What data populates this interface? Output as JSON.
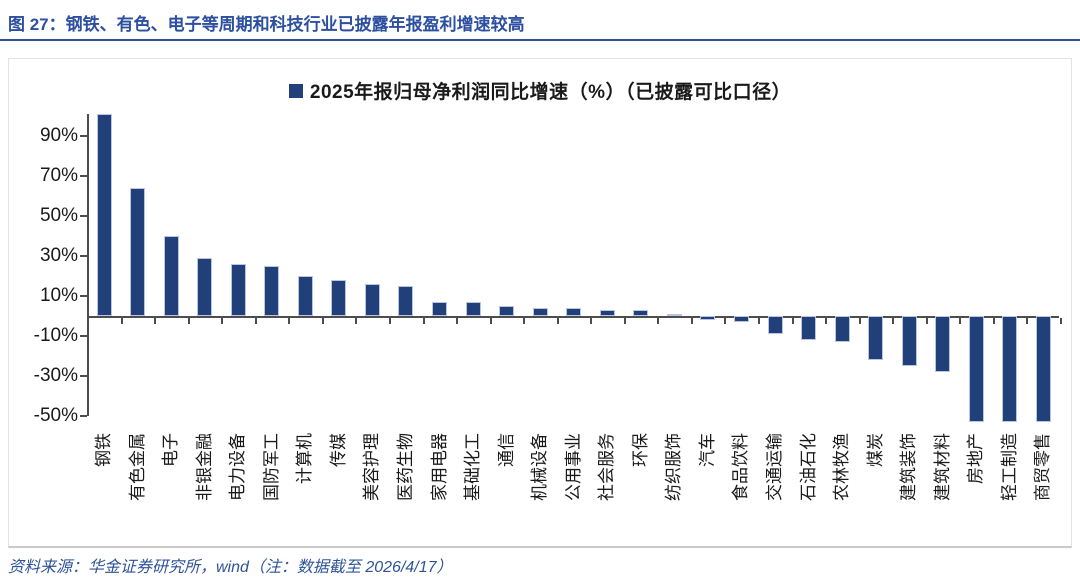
{
  "title": {
    "text": "图 27：钢铁、有色、电子等周期和科技行业已披露年报盈利增速较高"
  },
  "footer": {
    "text": "资料来源：华金证券研究所，wind（注：数据截至 2026/4/17）"
  },
  "colors": {
    "bar_fill": "#21407a",
    "bar_edge": "#b9c5e3",
    "accent_rule": "#2e5497",
    "title_text": "#2c4fa0",
    "footer_text": "#2e5497",
    "axis": "#4d4d4d",
    "text": "#1a1a1a"
  },
  "chart_data": {
    "type": "bar",
    "legend": [
      "2025年报归母净利润同比增速（%）（已披露可比口径）"
    ],
    "legend_position": "top",
    "categories": [
      "钢铁",
      "有色金属",
      "电子",
      "非银金融",
      "电力设备",
      "国防军工",
      "计算机",
      "传媒",
      "美容护理",
      "医药生物",
      "家用电器",
      "基础化工",
      "通信",
      "机械设备",
      "公用事业",
      "社会服务",
      "环保",
      "纺织服饰",
      "汽车",
      "食品饮料",
      "交通运输",
      "石油石化",
      "农林牧渔",
      "煤炭",
      "建筑装饰",
      "建筑材料",
      "房地产",
      "轻工制造",
      "商贸零售"
    ],
    "values": [
      101,
      64,
      40,
      29,
      26,
      25,
      20,
      18,
      16,
      15,
      7,
      7,
      5,
      4,
      4,
      3,
      3,
      1,
      -2,
      -3,
      -9,
      -12,
      -13,
      -22,
      -25,
      -28,
      -53,
      -53,
      -53
    ],
    "unit": "%",
    "yticks": [
      90,
      70,
      50,
      30,
      10,
      -10,
      -30,
      -50
    ],
    "ytick_suffix": "%",
    "ylim": [
      -53,
      101
    ],
    "xlabel": "",
    "ylabel": "",
    "grid": false
  }
}
